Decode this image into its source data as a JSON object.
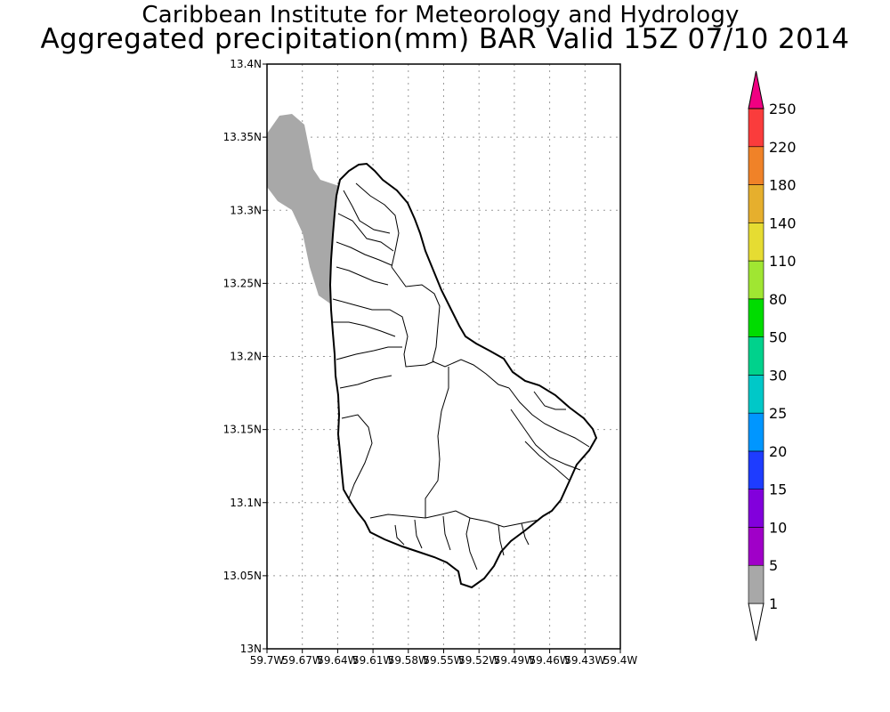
{
  "header": {
    "title": "Caribbean Institute for Meteorology and Hydrology",
    "subtitle": "Aggregated precipitation(mm) BAR Valid 15Z 07/10 2014"
  },
  "map": {
    "lon_range": [
      -59.7,
      -59.4
    ],
    "lat_range": [
      13.0,
      13.4
    ],
    "grid": true,
    "x_tick_labels": [
      "59.7W",
      "59.67W",
      "59.64W",
      "59.61W",
      "59.58W",
      "59.55W",
      "59.52W",
      "59.49W",
      "59.46W",
      "59.43W",
      "59.4W"
    ],
    "y_tick_labels": [
      "13N",
      "13.05N",
      "13.1N",
      "13.15N",
      "13.2N",
      "13.25N",
      "13.3N",
      "13.35N",
      "13.4N"
    ]
  },
  "colorbar": {
    "levels": [
      "1",
      "5",
      "10",
      "15",
      "20",
      "25",
      "30",
      "50",
      "80",
      "110",
      "140",
      "180",
      "220",
      "250"
    ],
    "colors": [
      "#a8a8a8",
      "#a000c8",
      "#8200dc",
      "#1e3cff",
      "#0096ff",
      "#00c8c8",
      "#00d28c",
      "#00dc00",
      "#a0e632",
      "#e6dc32",
      "#e6af2d",
      "#f08228",
      "#fa3c3c",
      "#f00082"
    ],
    "under_color": "#ffffff",
    "over_color": "#f00082"
  },
  "chart_data": {
    "type": "heatmap",
    "title": "Caribbean Institute for Meteorology and Hydrology",
    "subtitle": "Aggregated precipitation(mm) BAR Valid 15Z 07/10 2014",
    "xlim": [
      -59.7,
      -59.4
    ],
    "ylim": [
      13.0,
      13.4
    ],
    "units": "mm",
    "shaded_band": {
      "range": "1-5",
      "color": "#a8a8a8",
      "region": "northwest Barbados and adjacent sea"
    }
  }
}
